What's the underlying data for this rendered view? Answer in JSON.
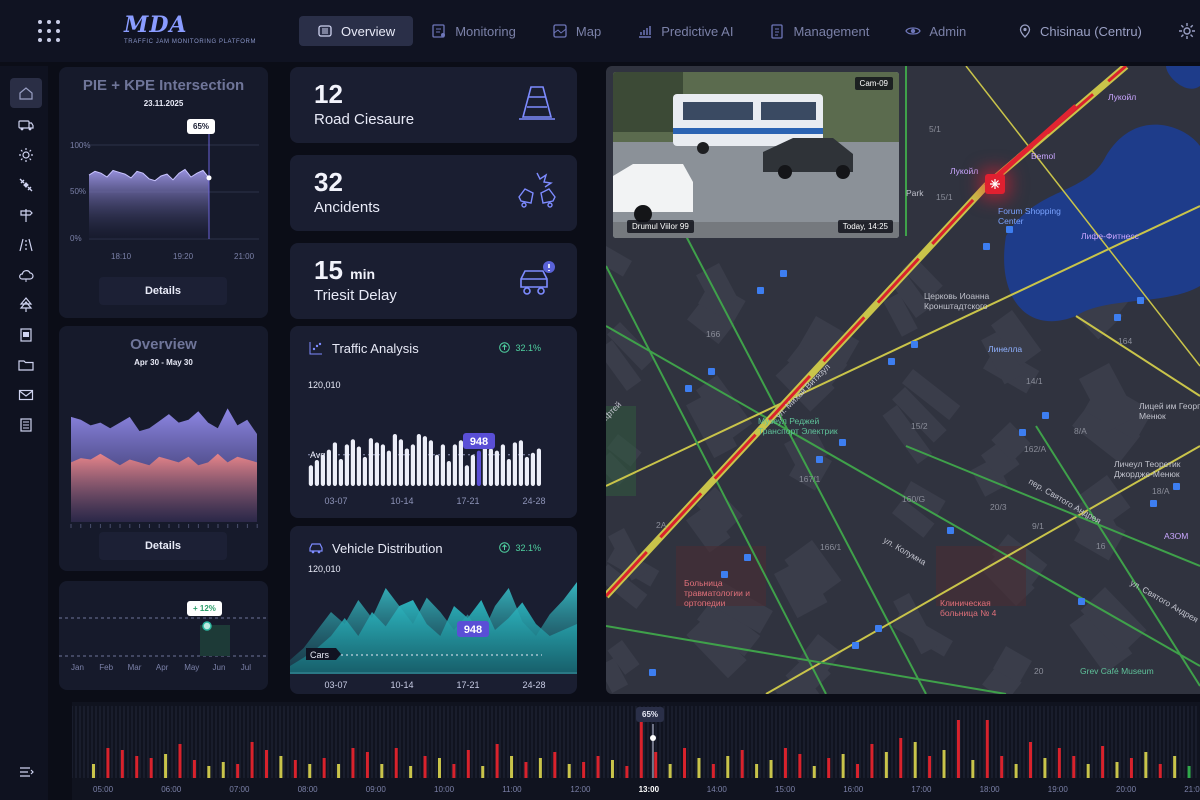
{
  "app": {
    "logo_mark": "MDA",
    "logo_subtitle": "TRAFFIC JAM MONITORING PLATFORM"
  },
  "nav": {
    "items": [
      {
        "label": "Overview",
        "icon": "overview-icon",
        "active": true
      },
      {
        "label": "Monitoring",
        "icon": "monitoring-icon"
      },
      {
        "label": "Map",
        "icon": "map-icon"
      },
      {
        "label": "Predictive AI",
        "icon": "predictive-ai-icon"
      },
      {
        "label": "Management",
        "icon": "management-icon"
      },
      {
        "label": "Admin",
        "icon": "admin-icon"
      }
    ],
    "location": "Chisinau (Centru)"
  },
  "sidebar": {
    "items": [
      "home-icon",
      "vehicle-icon",
      "sun-icon",
      "satellite-icon",
      "signpost-icon",
      "road-icon",
      "cloud-icon",
      "tree-icon",
      "document-icon",
      "folder-icon",
      "mail-icon",
      "list-icon"
    ],
    "active_index": 0
  },
  "intersection_card": {
    "title": "PIE + KPE Intersection",
    "date": "23.11.2025",
    "pill": "65%",
    "y_ticks": [
      "100%",
      "50%",
      "0%"
    ],
    "x_ticks": [
      "18:10",
      "19:20",
      "21:00"
    ],
    "button": "Details",
    "chart_data": {
      "type": "area",
      "series": [
        {
          "values": [
            68,
            72,
            70,
            66,
            73,
            71,
            69,
            65,
            72,
            70,
            64,
            62,
            67,
            69,
            63,
            70,
            74,
            66,
            70,
            73,
            65
          ]
        }
      ],
      "ylim": [
        0,
        100
      ],
      "marker_value": 65
    }
  },
  "overview_card": {
    "title": "Overview",
    "date": "Apr 30 - May 30",
    "button": "Details",
    "chart_data": {
      "type": "area",
      "series": [
        {
          "color": "#8f88e6",
          "values": [
            74,
            72,
            68,
            70,
            66,
            70,
            74,
            64,
            66,
            71,
            76,
            70,
            72,
            78,
            70,
            66,
            80,
            68,
            72,
            62
          ]
        },
        {
          "color": "#e8858a",
          "values": [
            42,
            45,
            44,
            48,
            44,
            40,
            44,
            42,
            40,
            46,
            44,
            42,
            46,
            40,
            42,
            48,
            42,
            46,
            44,
            42
          ]
        }
      ],
      "ylim": [
        0,
        100
      ]
    }
  },
  "monthly_card": {
    "pill": "+ 12%",
    "x_ticks": [
      "Jan",
      "Feb",
      "Mar",
      "Apr",
      "May",
      "Jun",
      "Jul"
    ],
    "chart_data": {
      "type": "line",
      "categories": [
        "Jan",
        "Feb",
        "Mar",
        "Apr",
        "May",
        "Jun",
        "Jul"
      ],
      "highlight": "Jun"
    }
  },
  "stats": [
    {
      "value": "12",
      "unit": "",
      "label": "Road Ciesaure",
      "icon": "road-cone-icon"
    },
    {
      "value": "32",
      "unit": "",
      "label": "Ancidents",
      "icon": "car-crash-icon"
    },
    {
      "value": "15",
      "unit": "min",
      "label": "Triesit Delay",
      "icon": "car-alert-icon"
    }
  ],
  "traffic_analysis": {
    "title": "Traffic Analysis",
    "badge": "32.1%",
    "big_number": "120,010",
    "avg_label": "Avg",
    "highlight_label": "948",
    "x_ticks": [
      "03-07",
      "10-14",
      "17-21",
      "24-28"
    ],
    "chart_data": {
      "type": "bar",
      "values": [
        20,
        25,
        30,
        35,
        42,
        26,
        40,
        45,
        38,
        28,
        46,
        42,
        40,
        34,
        50,
        45,
        36,
        40,
        50,
        48,
        44,
        30,
        40,
        24,
        40,
        44,
        20,
        30,
        34,
        48,
        36,
        34,
        40,
        26,
        42,
        44,
        28,
        32,
        36
      ],
      "highlight_index": 28,
      "avg": 30
    }
  },
  "vehicle_distribution": {
    "title": "Vehicle Distribution",
    "badge": "32.1%",
    "big_number": "120,010",
    "cars_label": "Cars",
    "highlight_label": "948",
    "x_ticks": [
      "03-07",
      "10-14",
      "17-21",
      "24-28"
    ],
    "chart_data": {
      "type": "area",
      "series": [
        {
          "values": [
            10,
            20,
            35,
            50,
            40,
            60,
            45,
            70,
            55,
            40,
            62,
            50,
            35,
            48,
            30,
            55,
            70,
            42,
            30,
            48,
            60,
            75
          ]
        },
        {
          "values": [
            5,
            12,
            20,
            30,
            45,
            30,
            50,
            38,
            55,
            60,
            40,
            30,
            55,
            45,
            60,
            35,
            45,
            58,
            40,
            30,
            35,
            40
          ]
        }
      ]
    }
  },
  "map": {
    "camera": {
      "id": "Cam-09",
      "location": "Drumul Viilor 99",
      "time": "Today, 14:25"
    },
    "labels": [
      {
        "text": "Лукойл",
        "color": "#c9a6ff"
      },
      {
        "text": "Bemol",
        "color": "#c9a6ff"
      },
      {
        "text": "Лукойл",
        "color": "#c9a6ff"
      },
      {
        "text": "Forum Shopping Center",
        "color": "#7aa3ff"
      },
      {
        "text": "Лифе-Фитнесс",
        "color": "#c9a6ff"
      },
      {
        "text": "Церковь Иоанна Кронштадтского",
        "color": "#c0c2cc"
      },
      {
        "text": "Линелла",
        "color": "#8fb1ff"
      },
      {
        "text": "ул. Михай Витязул",
        "color": "#c0c2cc"
      },
      {
        "text": "Музеул Реджей Транспорт Электрик",
        "color": "#5fc29a"
      },
      {
        "text": "Лицей им Георге Менюк",
        "color": "#c0c2cc"
      },
      {
        "text": "Личеул Теоретик Джордже-Менюк",
        "color": "#c0c2cc"
      },
      {
        "text": "пер. Святого Андрея",
        "color": "#c0c2cc"
      },
      {
        "text": "ул. Колумна",
        "color": "#c0c2cc"
      },
      {
        "text": "Больница травматологии и ортопедии",
        "color": "#e0707a"
      },
      {
        "text": "Клиническая больница № 4",
        "color": "#e0707a"
      },
      {
        "text": "АЗОМ",
        "color": "#c9a6ff"
      },
      {
        "text": "ул. Святого Андрея",
        "color": "#c0c2cc"
      },
      {
        "text": "Grev Café Museum",
        "color": "#5fc29a"
      },
      {
        "text": "Park",
        "color": "#c0c2cc"
      },
      {
        "text": "Ефтей",
        "color": "#c0c2cc"
      }
    ],
    "house_numbers": [
      "5/1",
      "15/1",
      "166",
      "167/1",
      "166/1",
      "160/G",
      "15/2",
      "162/A",
      "164",
      "16",
      "20/3",
      "18/A",
      "2A",
      "9/1",
      "8/A",
      "14/1",
      "20"
    ]
  },
  "timeline": {
    "pill": "65%",
    "ticks": [
      "05:00",
      "06:00",
      "07:00",
      "08:00",
      "09:00",
      "10:00",
      "11:00",
      "12:00",
      "13:00",
      "14:00",
      "15:00",
      "16:00",
      "17:00",
      "18:00",
      "19:00",
      "20:00",
      "21:0"
    ],
    "current": "13:00",
    "chart_data": {
      "type": "bar",
      "bars": [
        {
          "v": 14,
          "c": "y"
        },
        {
          "v": 30,
          "c": "r"
        },
        {
          "v": 28,
          "c": "r"
        },
        {
          "v": 22,
          "c": "r"
        },
        {
          "v": 20,
          "c": "r"
        },
        {
          "v": 24,
          "c": "y"
        },
        {
          "v": 34,
          "c": "r"
        },
        {
          "v": 18,
          "c": "r"
        },
        {
          "v": 12,
          "c": "y"
        },
        {
          "v": 16,
          "c": "y"
        },
        {
          "v": 14,
          "c": "r"
        },
        {
          "v": 36,
          "c": "r"
        },
        {
          "v": 28,
          "c": "r"
        },
        {
          "v": 22,
          "c": "y"
        },
        {
          "v": 18,
          "c": "r"
        },
        {
          "v": 14,
          "c": "y"
        },
        {
          "v": 20,
          "c": "r"
        },
        {
          "v": 14,
          "c": "y"
        },
        {
          "v": 30,
          "c": "r"
        },
        {
          "v": 26,
          "c": "r"
        },
        {
          "v": 14,
          "c": "y"
        },
        {
          "v": 30,
          "c": "r"
        },
        {
          "v": 12,
          "c": "y"
        },
        {
          "v": 22,
          "c": "r"
        },
        {
          "v": 20,
          "c": "y"
        },
        {
          "v": 14,
          "c": "r"
        },
        {
          "v": 28,
          "c": "r"
        },
        {
          "v": 12,
          "c": "y"
        },
        {
          "v": 34,
          "c": "r"
        },
        {
          "v": 22,
          "c": "y"
        },
        {
          "v": 16,
          "c": "r"
        },
        {
          "v": 20,
          "c": "y"
        },
        {
          "v": 26,
          "c": "r"
        },
        {
          "v": 14,
          "c": "y"
        },
        {
          "v": 16,
          "c": "r"
        },
        {
          "v": 22,
          "c": "r"
        },
        {
          "v": 18,
          "c": "y"
        },
        {
          "v": 12,
          "c": "r"
        },
        {
          "v": 62,
          "c": "r"
        },
        {
          "v": 26,
          "c": "r"
        },
        {
          "v": 14,
          "c": "y"
        },
        {
          "v": 30,
          "c": "r"
        },
        {
          "v": 20,
          "c": "y"
        },
        {
          "v": 14,
          "c": "r"
        },
        {
          "v": 22,
          "c": "y"
        },
        {
          "v": 28,
          "c": "r"
        },
        {
          "v": 14,
          "c": "y"
        },
        {
          "v": 18,
          "c": "y"
        },
        {
          "v": 30,
          "c": "r"
        },
        {
          "v": 24,
          "c": "r"
        },
        {
          "v": 12,
          "c": "y"
        },
        {
          "v": 20,
          "c": "r"
        },
        {
          "v": 24,
          "c": "y"
        },
        {
          "v": 14,
          "c": "r"
        },
        {
          "v": 34,
          "c": "r"
        },
        {
          "v": 26,
          "c": "y"
        },
        {
          "v": 40,
          "c": "r"
        },
        {
          "v": 36,
          "c": "y"
        },
        {
          "v": 22,
          "c": "r"
        },
        {
          "v": 28,
          "c": "y"
        },
        {
          "v": 58,
          "c": "r"
        },
        {
          "v": 18,
          "c": "y"
        },
        {
          "v": 58,
          "c": "r"
        },
        {
          "v": 22,
          "c": "r"
        },
        {
          "v": 14,
          "c": "y"
        },
        {
          "v": 36,
          "c": "r"
        },
        {
          "v": 20,
          "c": "y"
        },
        {
          "v": 30,
          "c": "r"
        },
        {
          "v": 22,
          "c": "r"
        },
        {
          "v": 14,
          "c": "y"
        },
        {
          "v": 32,
          "c": "r"
        },
        {
          "v": 16,
          "c": "y"
        },
        {
          "v": 20,
          "c": "r"
        },
        {
          "v": 26,
          "c": "y"
        },
        {
          "v": 14,
          "c": "r"
        },
        {
          "v": 22,
          "c": "y"
        },
        {
          "v": 12,
          "c": "g"
        }
      ]
    }
  },
  "colors": {
    "accent": "#6b63d8",
    "bar_highlight": "#5a4fd6",
    "red": "#d9222c",
    "yellow": "#c9c44a",
    "teal": "#2db7c1",
    "green_badge": "#4fd1a0"
  }
}
